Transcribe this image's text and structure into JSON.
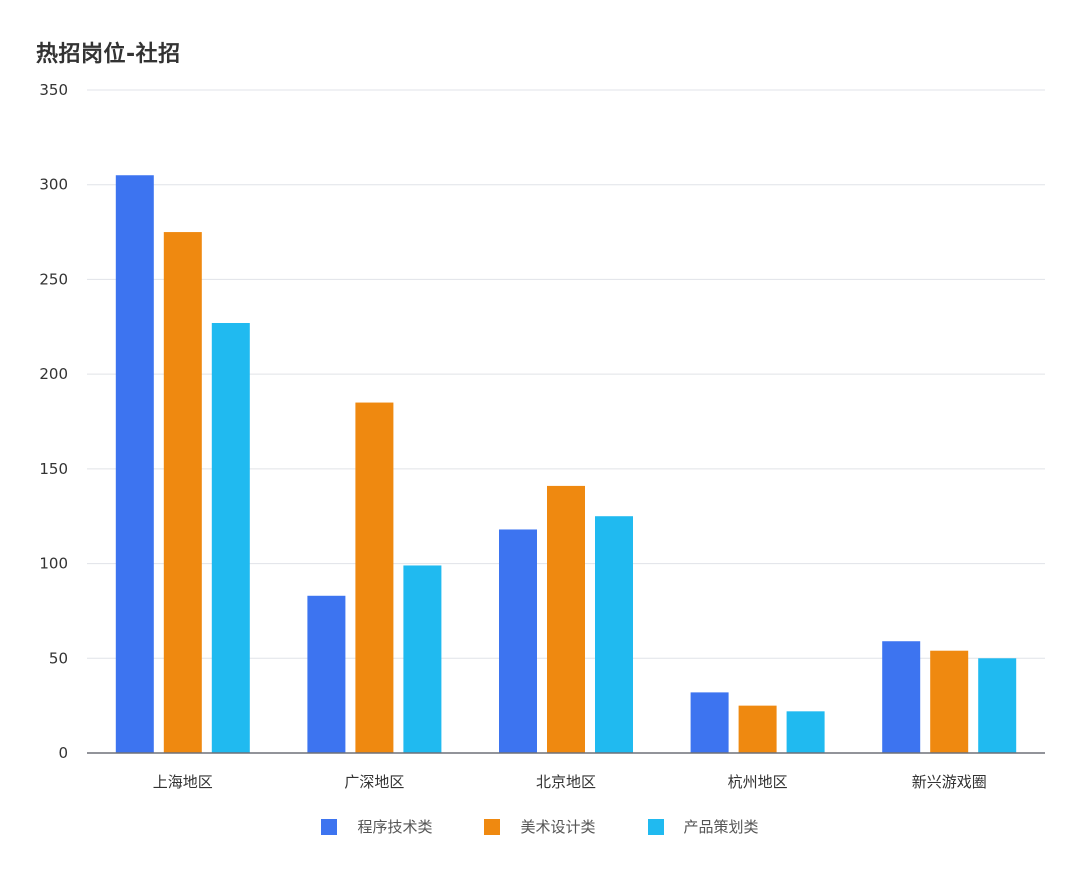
{
  "chart_data": {
    "type": "bar",
    "title": "热招岗位-社招",
    "categories": [
      "上海地区",
      "广深地区",
      "北京地区",
      "杭州地区",
      "新兴游戏圈"
    ],
    "series": [
      {
        "name": "程序技术类",
        "color": "#3D74F0",
        "values": [
          305,
          83,
          118,
          32,
          59
        ]
      },
      {
        "name": "美术设计类",
        "color": "#EF8910",
        "values": [
          275,
          185,
          141,
          25,
          54
        ]
      },
      {
        "name": "产品策划类",
        "color": "#20BAF0",
        "values": [
          227,
          99,
          125,
          22,
          50
        ]
      }
    ],
    "ylim": [
      0,
      350
    ],
    "yticks": [
      0,
      50,
      100,
      150,
      200,
      250,
      300,
      350
    ],
    "grid": true,
    "legend_position": "bottom",
    "xlabel": "",
    "ylabel": ""
  }
}
